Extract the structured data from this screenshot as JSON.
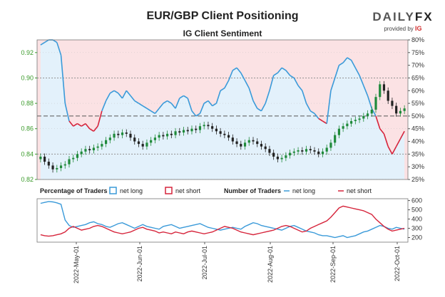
{
  "title": "EUR/GBP Client Positioning",
  "subtitle": "IG Client Sentiment",
  "brand": {
    "name_a": "DAILY",
    "name_b": "FX",
    "provided_by": "provided by",
    "provider": "IG"
  },
  "colors": {
    "long": "#3a9ad9",
    "short": "#d6243b",
    "long_zone": "#e3f1fb",
    "short_zone": "#fbe2e4",
    "candle_up": "#1f8a3a",
    "candle_down": "#222222",
    "price_axis": "#3a9a2a"
  },
  "legend_left": {
    "title": "Percentage of Traders",
    "long": "net long",
    "short": "net short"
  },
  "legend_right": {
    "title": "Number of Traders",
    "long": "net long",
    "short": "net short"
  },
  "chart_data": [
    {
      "type": "candlestick",
      "name": "price",
      "y_left": {
        "ticks": [
          0.82,
          0.84,
          0.86,
          0.88,
          0.9,
          0.92
        ],
        "labels": [
          "0.82",
          "0.84",
          "0.86",
          "0.88",
          "0.90",
          "0.92"
        ],
        "range": [
          0.82,
          0.93
        ]
      },
      "y_right": {
        "ticks": [
          25,
          30,
          35,
          40,
          45,
          50,
          55,
          60,
          65,
          70,
          75,
          80
        ],
        "labels": [
          "25%",
          "30%",
          "35%",
          "40%",
          "45%",
          "50%",
          "55%",
          "60%",
          "65%",
          "70%",
          "75%",
          "80%"
        ],
        "range": [
          25,
          80
        ]
      },
      "reference_lines": {
        "pct_50": 50,
        "pct_65": 65,
        "pct_35": 35
      },
      "x_labels": [
        "2022-May-01",
        "2022-Jun-01",
        "2022-Jul-01",
        "2022-Aug-01",
        "2022-Sep-01",
        "2022-Oct-01"
      ],
      "price_close": [
        0.838,
        0.834,
        0.831,
        0.828,
        0.829,
        0.831,
        0.832,
        0.836,
        0.837,
        0.84,
        0.842,
        0.844,
        0.843,
        0.845,
        0.846,
        0.848,
        0.851,
        0.853,
        0.856,
        0.855,
        0.857,
        0.856,
        0.853,
        0.85,
        0.848,
        0.846,
        0.849,
        0.851,
        0.853,
        0.855,
        0.854,
        0.856,
        0.855,
        0.858,
        0.857,
        0.859,
        0.858,
        0.86,
        0.859,
        0.862,
        0.863,
        0.862,
        0.86,
        0.858,
        0.856,
        0.855,
        0.853,
        0.85,
        0.848,
        0.846,
        0.849,
        0.851,
        0.85,
        0.848,
        0.846,
        0.844,
        0.841,
        0.838,
        0.836,
        0.837,
        0.839,
        0.841,
        0.842,
        0.843,
        0.842,
        0.844,
        0.843,
        0.842,
        0.84,
        0.842,
        0.845,
        0.849,
        0.855,
        0.86,
        0.862,
        0.864,
        0.866,
        0.867,
        0.868,
        0.87,
        0.872,
        0.875,
        0.885,
        0.895,
        0.89,
        0.882,
        0.878,
        0.872,
        0.874,
        0.876
      ],
      "pct_long": [
        78,
        79,
        80,
        80,
        79,
        74,
        55,
        48,
        46,
        47,
        46,
        47,
        45,
        44,
        46,
        52,
        56,
        59,
        60,
        59,
        57,
        60,
        58,
        56,
        55,
        54,
        53,
        52,
        51,
        53,
        55,
        56,
        55,
        53,
        57,
        58,
        57,
        52,
        50,
        51,
        55,
        56,
        54,
        55,
        60,
        61,
        64,
        68,
        69,
        67,
        64,
        61,
        56,
        53,
        52,
        55,
        60,
        66,
        67,
        69,
        68,
        66,
        65,
        62,
        60,
        55,
        52,
        51,
        49,
        48,
        47,
        60,
        65,
        70,
        71,
        73,
        72,
        69,
        66,
        62,
        58,
        53,
        50,
        45,
        43,
        38,
        35,
        38,
        41,
        44
      ]
    },
    {
      "type": "line",
      "name": "traders",
      "y_right": {
        "ticks": [
          200,
          300,
          400,
          500,
          600
        ],
        "labels": [
          "200",
          "300",
          "400",
          "500",
          "600"
        ],
        "range": [
          150,
          620
        ]
      },
      "net_long": [
        570,
        580,
        590,
        585,
        575,
        560,
        390,
        330,
        310,
        320,
        330,
        340,
        360,
        370,
        350,
        340,
        320,
        310,
        330,
        350,
        360,
        340,
        320,
        300,
        320,
        340,
        320,
        310,
        300,
        290,
        320,
        330,
        340,
        320,
        300,
        310,
        320,
        330,
        340,
        350,
        330,
        310,
        300,
        290,
        280,
        290,
        300,
        310,
        300,
        290,
        320,
        340,
        360,
        350,
        330,
        320,
        310,
        300,
        290,
        280,
        300,
        320,
        330,
        310,
        290,
        270,
        260,
        250,
        230,
        220,
        220,
        210,
        200,
        210,
        220,
        200,
        210,
        220,
        240,
        260,
        270,
        290,
        310,
        330,
        320,
        300,
        290,
        310,
        300,
        290
      ],
      "net_short": [
        230,
        220,
        215,
        220,
        230,
        240,
        260,
        300,
        320,
        300,
        280,
        290,
        300,
        320,
        330,
        320,
        300,
        280,
        260,
        250,
        240,
        250,
        260,
        280,
        300,
        310,
        290,
        280,
        270,
        250,
        260,
        250,
        240,
        260,
        250,
        240,
        260,
        270,
        260,
        250,
        240,
        250,
        260,
        280,
        300,
        320,
        310,
        300,
        280,
        260,
        250,
        240,
        230,
        240,
        250,
        260,
        270,
        280,
        300,
        320,
        330,
        320,
        300,
        280,
        260,
        270,
        300,
        320,
        340,
        360,
        380,
        420,
        470,
        520,
        540,
        530,
        520,
        510,
        500,
        490,
        470,
        450,
        400,
        360,
        320,
        290,
        270,
        280,
        290,
        300
      ]
    }
  ]
}
